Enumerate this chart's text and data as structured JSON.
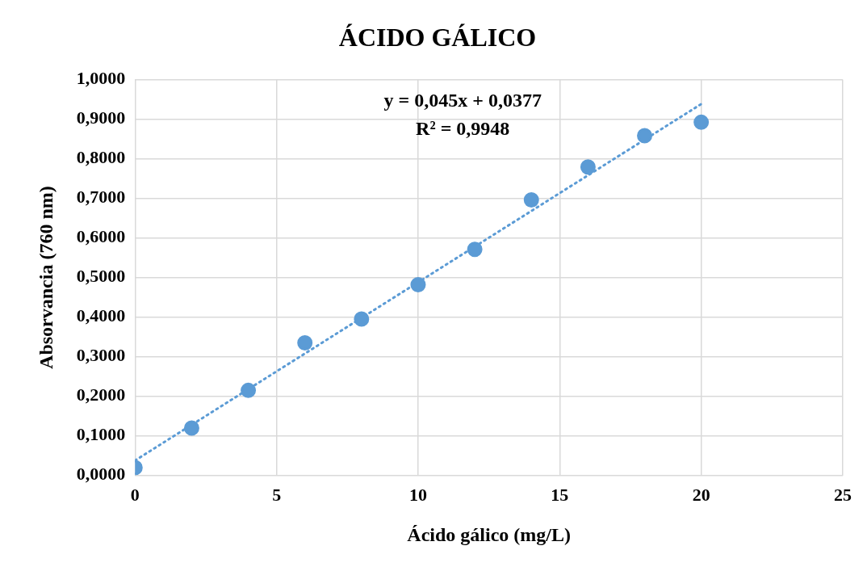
{
  "chart_data": {
    "type": "scatter",
    "title": "ÁCIDO GÁLICO",
    "xlabel": "Ácido gálico (mg/L)",
    "ylabel": "Absorvancia (760 nm)",
    "annotations": [
      "y = 0,045x + 0,0377",
      "R² = 0,9948"
    ],
    "series": [
      {
        "type": "scatter",
        "color": "#5b9bd5",
        "x": [
          0,
          2,
          4,
          6,
          8,
          10,
          12,
          14,
          16,
          18,
          20
        ],
        "values": [
          0.02,
          0.12,
          0.215,
          0.335,
          0.395,
          0.482,
          0.571,
          0.696,
          0.779,
          0.858,
          0.892
        ]
      },
      {
        "type": "line",
        "color": "#5b9bd5",
        "line_style": "dotted",
        "marker": "none",
        "x": [
          0,
          20
        ],
        "values": [
          0.038,
          0.938
        ]
      }
    ],
    "xlim": [
      0,
      25
    ],
    "xticks": [
      0,
      5,
      10,
      15,
      20,
      25
    ],
    "ylim": [
      0,
      1
    ],
    "yticks": [
      {
        "value": 0,
        "label": "0,0000"
      },
      {
        "value": 0.1,
        "label": "0,1000"
      },
      {
        "value": 0.2,
        "label": "0,2000"
      },
      {
        "value": 0.3,
        "label": "0,3000"
      },
      {
        "value": 0.4,
        "label": "0,4000"
      },
      {
        "value": 0.5,
        "label": "0,5000"
      },
      {
        "value": 0.6,
        "label": "0,6000"
      },
      {
        "value": 0.7,
        "label": "0,7000"
      },
      {
        "value": 0.8,
        "label": "0,8000"
      },
      {
        "value": 0.9,
        "label": "0,9000"
      },
      {
        "value": 1,
        "label": "1,0000"
      }
    ],
    "grid": true,
    "legend": false,
    "marker": "circle"
  }
}
